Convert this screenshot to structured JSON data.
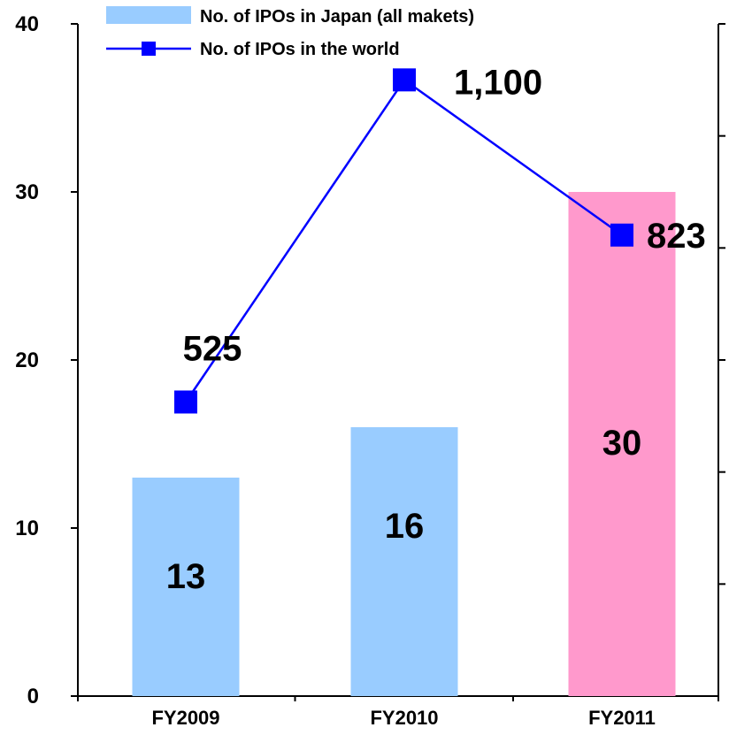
{
  "chart_data": {
    "type": "bar",
    "title": "",
    "xlabel": "",
    "ylabel": "",
    "categories": [
      "FY2009",
      "FY2010",
      "FY2011"
    ],
    "ylim": [
      0,
      40
    ],
    "y_ticks": [
      "0",
      "10",
      "20",
      "30",
      "40"
    ],
    "right_axis_ticks_shown": false,
    "legend_position": "top",
    "grid": false,
    "series": [
      {
        "name": "No. of IPOs in Japan (all makets)",
        "type": "bar",
        "values": [
          13,
          16,
          30
        ],
        "labels": [
          "13",
          "16",
          "30"
        ],
        "colors": [
          "#99ccff",
          "#99ccff",
          "#ff99cc"
        ]
      },
      {
        "name": "No. of IPOs in the world",
        "type": "line",
        "values": [
          525,
          1100,
          823
        ],
        "labels": [
          "525",
          "1,100",
          "823"
        ],
        "color": "#0000ff",
        "marker": "square"
      }
    ]
  }
}
